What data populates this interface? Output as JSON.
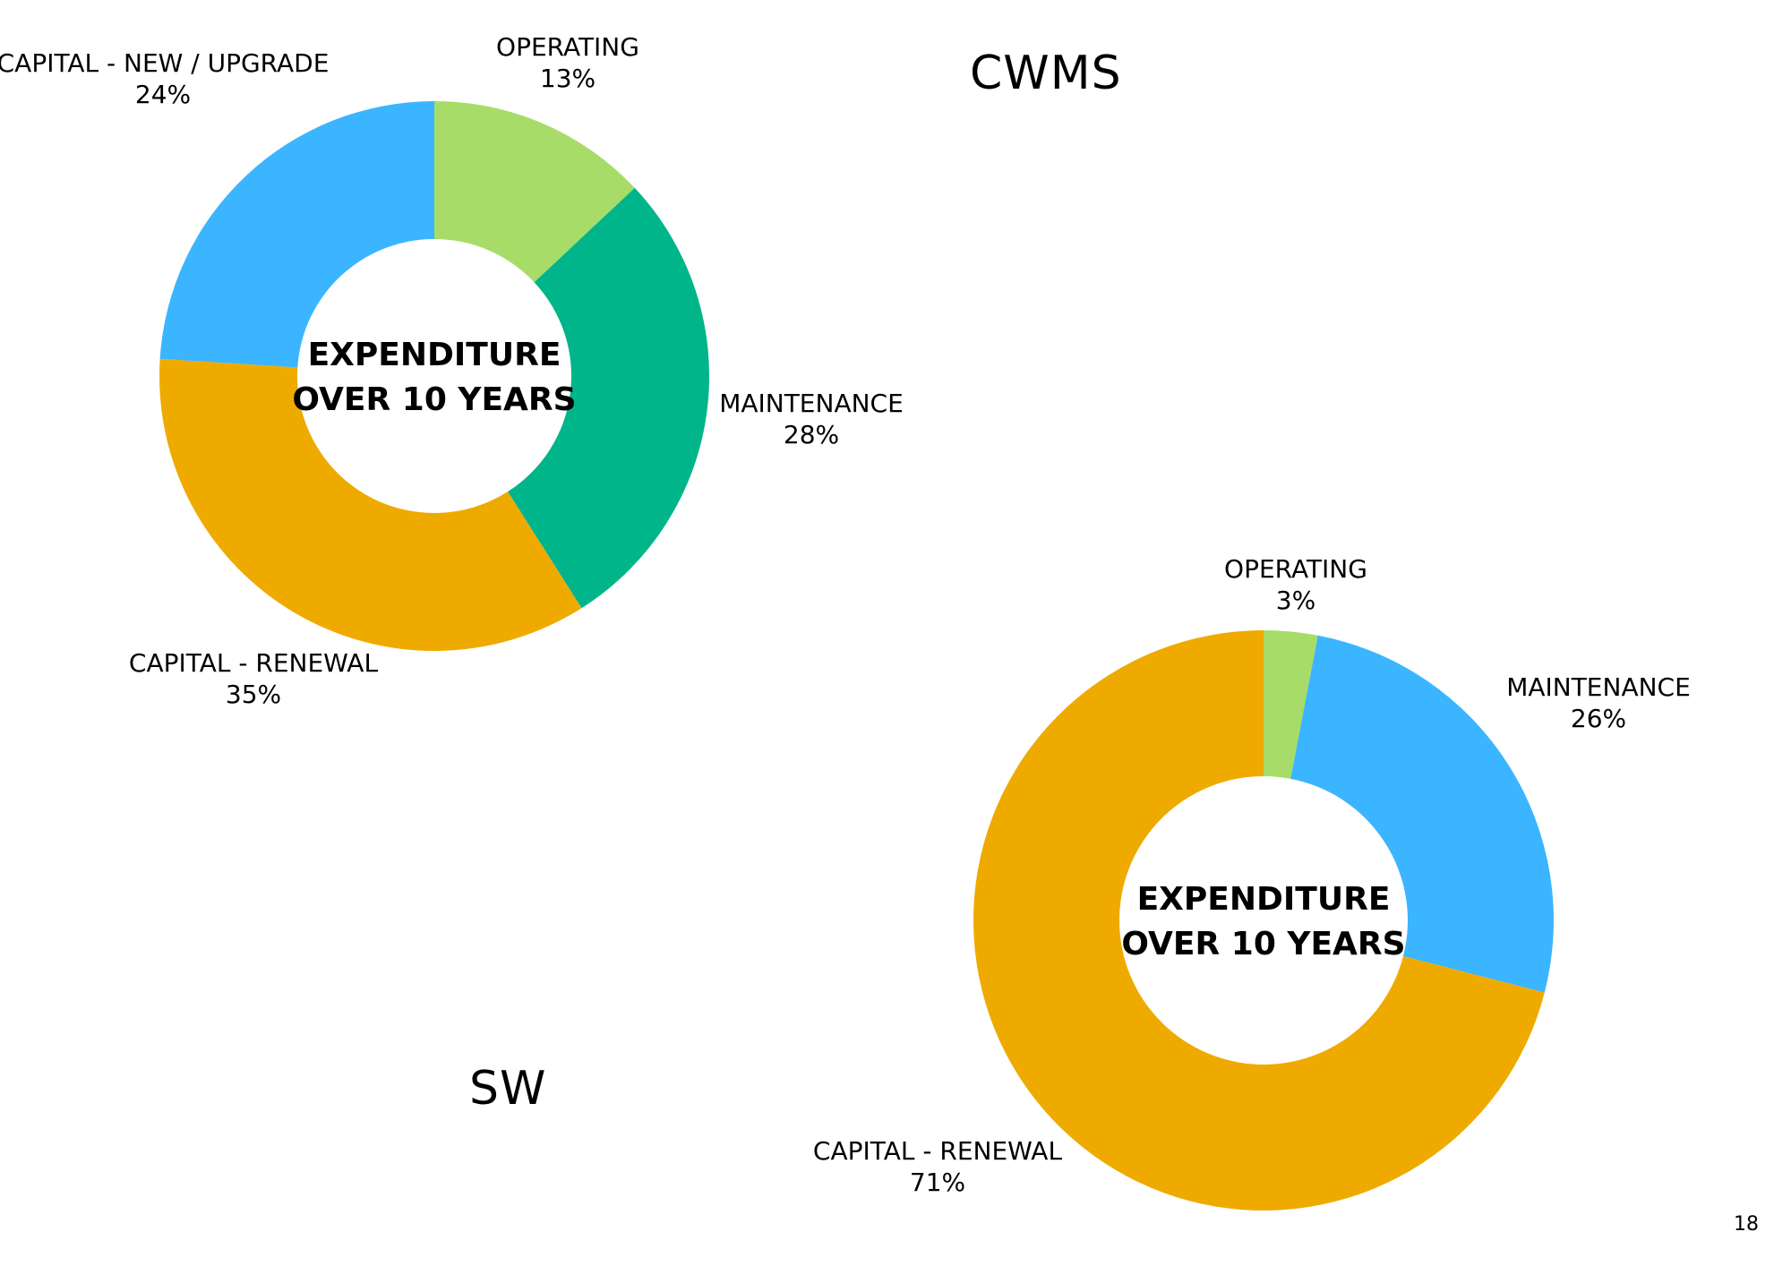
{
  "page": {
    "number": "18"
  },
  "chart_data": [
    {
      "type": "pie",
      "donut": true,
      "title": "CWMS",
      "center_text": [
        "EXPENDITURE",
        "OVER 10 YEARS"
      ],
      "slices": [
        {
          "label": "OPERATING",
          "value": 13,
          "display": "13%",
          "color": "#A8DC68"
        },
        {
          "label": "MAINTENANCE",
          "value": 28,
          "display": "28%",
          "color": "#00B58A"
        },
        {
          "label": "CAPITAL - RENEWAL",
          "value": 35,
          "display": "35%",
          "color": "#EFAA00"
        },
        {
          "label": "CAPITAL - NEW / UPGRADE",
          "value": 24,
          "display": "24%",
          "color": "#3BB5FF"
        }
      ]
    },
    {
      "type": "pie",
      "donut": true,
      "title": "SW",
      "center_text": [
        "EXPENDITURE",
        "OVER 10 YEARS"
      ],
      "slices": [
        {
          "label": "OPERATING",
          "value": 3,
          "display": "3%",
          "color": "#A8DC68"
        },
        {
          "label": "MAINTENANCE",
          "value": 26,
          "display": "26%",
          "color": "#3BB5FF"
        },
        {
          "label": "CAPITAL - RENEWAL",
          "value": 71,
          "display": "71%",
          "color": "#EFAA00"
        }
      ]
    }
  ]
}
